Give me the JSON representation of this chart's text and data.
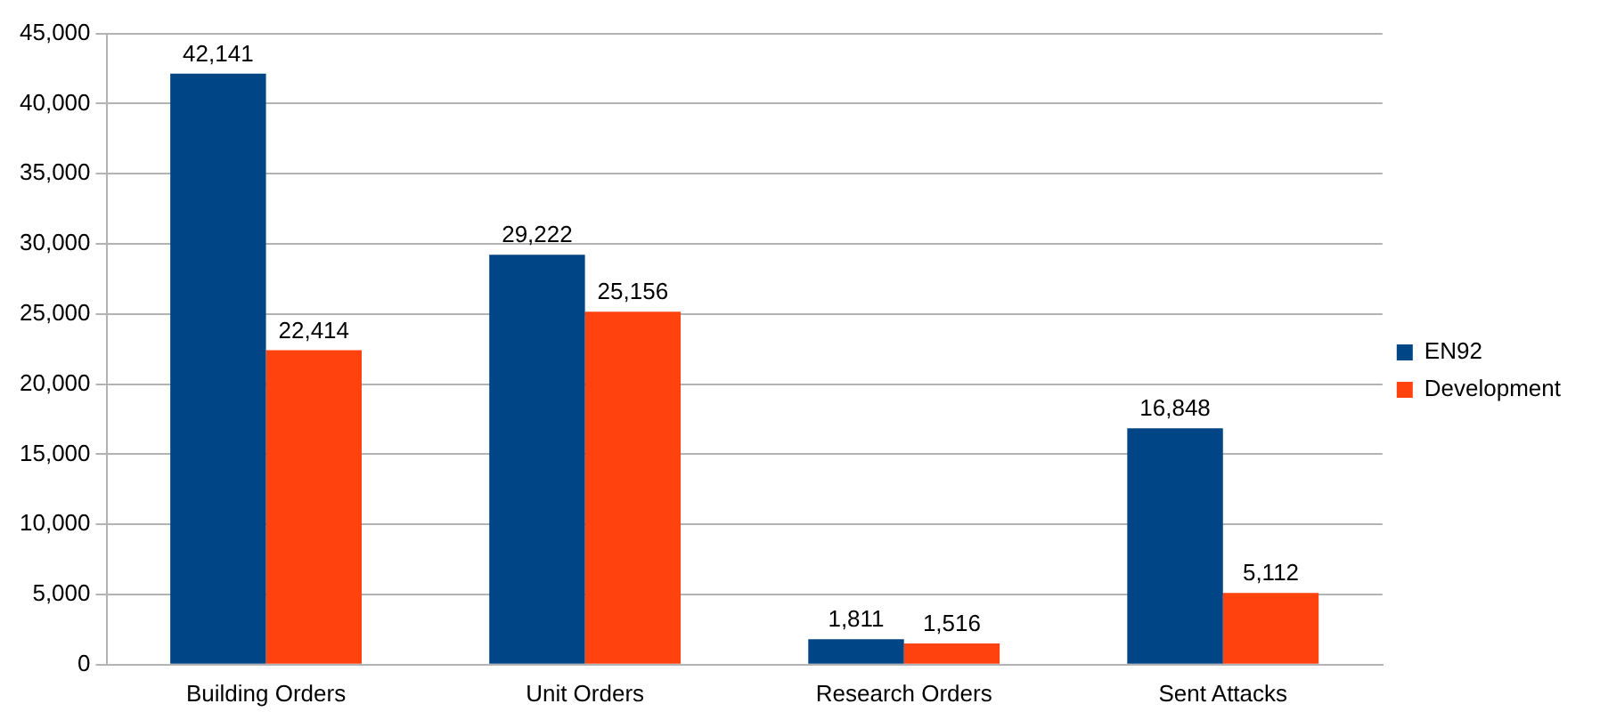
{
  "chart_data": {
    "type": "bar",
    "categories": [
      "Building Orders",
      "Unit Orders",
      "Research Orders",
      "Sent Attacks"
    ],
    "series": [
      {
        "name": "EN92",
        "color": "#004586",
        "values": [
          42141,
          29222,
          1811,
          16848
        ],
        "value_labels": [
          "42,141",
          "29,222",
          "1,811",
          "16,848"
        ]
      },
      {
        "name": "Development",
        "color": "#ff420e",
        "values": [
          22414,
          25156,
          1516,
          5112
        ],
        "value_labels": [
          "22,414",
          "25,156",
          "1,516",
          "5,112"
        ]
      }
    ],
    "ylim": [
      0,
      45000
    ],
    "yticks": [
      {
        "value": 0,
        "label": "0"
      },
      {
        "value": 5000,
        "label": "5,000"
      },
      {
        "value": 10000,
        "label": "10,000"
      },
      {
        "value": 15000,
        "label": "15,000"
      },
      {
        "value": 20000,
        "label": "20,000"
      },
      {
        "value": 25000,
        "label": "25,000"
      },
      {
        "value": 30000,
        "label": "30,000"
      },
      {
        "value": 35000,
        "label": "35,000"
      },
      {
        "value": 40000,
        "label": "40,000"
      },
      {
        "value": 45000,
        "label": "45,000"
      }
    ],
    "grid": "y",
    "legend": "right"
  }
}
